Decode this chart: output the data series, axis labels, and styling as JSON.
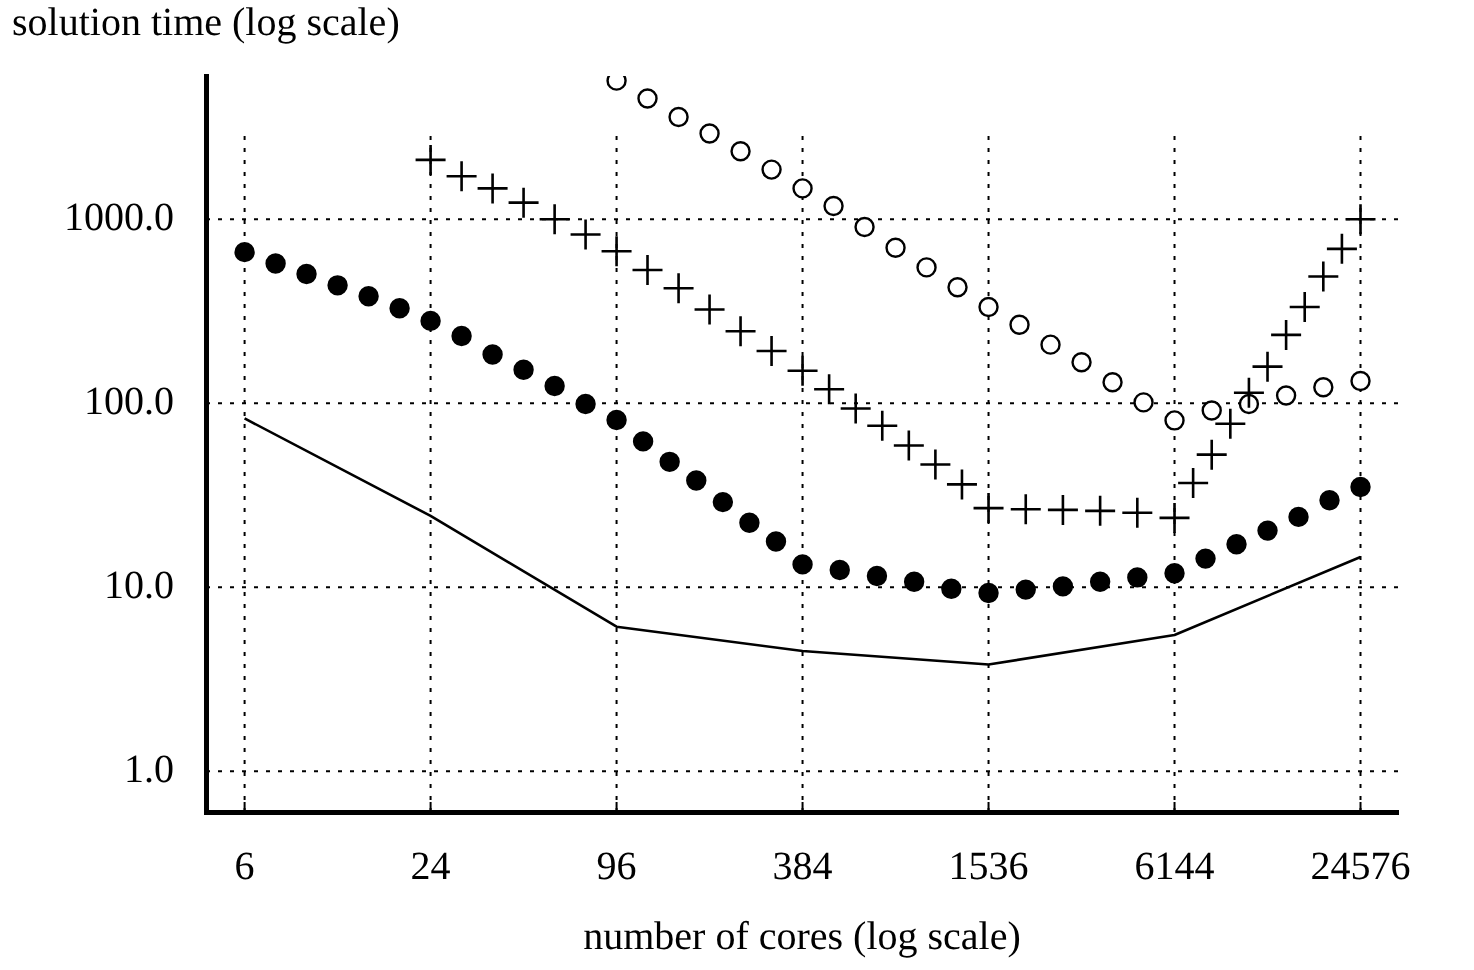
{
  "chart_data": {
    "type": "scatter",
    "xlabel": "number of cores (log scale)",
    "ylabel": "solution time (log scale)",
    "log": "xy",
    "grid": true,
    "legend": false,
    "xlim": [
      4.5,
      32500
    ],
    "xticks": [
      6,
      24,
      96,
      384,
      1536,
      6144,
      24576
    ],
    "ylim": [
      0.63,
      6000
    ],
    "yticks": [
      {
        "value": 1,
        "label": "1.0"
      },
      {
        "value": 10,
        "label": "10.0"
      },
      {
        "value": 100,
        "label": "100.0"
      },
      {
        "value": 1000,
        "label": "1000.0"
      }
    ],
    "series": [
      {
        "type": "line",
        "color": "#000000",
        "marker": "none",
        "line_style": "solid",
        "x": [
          6,
          24,
          96,
          384,
          1536,
          6144,
          24576
        ],
        "values": [
          82.6,
          24.4,
          6.1,
          4.5,
          3.8,
          5.5,
          14.6
        ]
      },
      {
        "type": "scatter",
        "color": "#000000",
        "marker": "circle",
        "x": [
          6,
          7.56,
          9.52,
          12,
          15.12,
          19.05,
          24,
          30.24,
          38.1,
          48,
          60.5,
          76.2,
          96,
          117,
          142.6,
          173.9,
          212,
          258.4,
          315,
          384,
          506.7,
          668.6,
          882.2,
          1164,
          1536,
          2027,
          2674,
          3529,
          4656,
          6144,
          7741,
          9753,
          12288,
          15482,
          19506,
          24576
        ],
        "values": [
          662,
          574,
          504,
          437,
          381,
          328,
          280,
          232,
          184,
          152,
          124,
          99,
          81,
          62,
          48,
          38,
          29,
          22.4,
          17.7,
          13.3,
          12.4,
          11.5,
          10.7,
          9.8,
          9.3,
          9.7,
          10.1,
          10.7,
          11.3,
          11.9,
          14.3,
          17.1,
          20.3,
          24.1,
          29.7,
          35
        ]
      },
      {
        "type": "scatter",
        "color": "#000000",
        "marker": "cross",
        "x": [
          24,
          30.24,
          38.1,
          48,
          60.5,
          76.2,
          96,
          120.9,
          152.4,
          192,
          241.9,
          304.8,
          384,
          468.1,
          570.6,
          695.6,
          847.9,
          1033.6,
          1260,
          1536,
          2027,
          2674,
          3529,
          4656,
          6144,
          7058,
          8107,
          9313,
          10698,
          12288,
          14115,
          16214,
          18626,
          21395,
          24576
        ],
        "values": [
          2100,
          1710,
          1470,
          1230,
          1000,
          826,
          670,
          529,
          421,
          323,
          246,
          192,
          150,
          119,
          93.5,
          75.4,
          58.9,
          46.4,
          36.2,
          26.9,
          26.5,
          26.3,
          26,
          25.4,
          23.8,
          36.8,
          52.5,
          77.3,
          114,
          158,
          235,
          333,
          488,
          690,
          1000
        ]
      },
      {
        "type": "scatter",
        "color": "#ffffff",
        "marker": "circle",
        "x": [
          96,
          120.9,
          152.4,
          192,
          241.9,
          304.8,
          384,
          483.8,
          609.6,
          768,
          967.6,
          1219,
          1536,
          1935,
          2438,
          3072,
          3871,
          4877,
          6144,
          8107,
          10698,
          14115,
          18626,
          24576
        ],
        "values": [
          5660,
          4530,
          3590,
          2920,
          2340,
          1860,
          1470,
          1180,
          906,
          700,
          547,
          427,
          333,
          267,
          208,
          167,
          130,
          101,
          80.6,
          91.2,
          99,
          110,
          122,
          132
        ]
      }
    ]
  }
}
